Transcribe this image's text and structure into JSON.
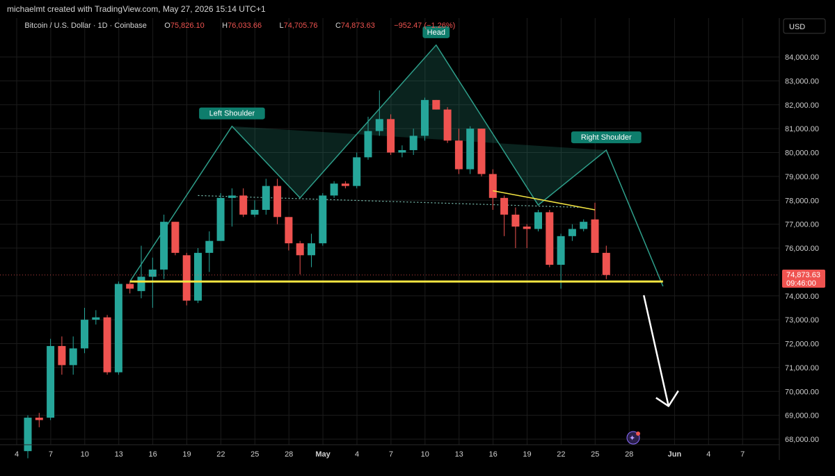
{
  "header": {
    "attribution": "michaelmt created with TradingView.com, May 27, 2026 15:14 UTC+1",
    "symbol": "Bitcoin / U.S. Dollar · 1D · Coinbase",
    "open_label": "O",
    "open": "75,826.10",
    "high_label": "H",
    "high": "76,033.66",
    "low_label": "L",
    "low": "74,705.76",
    "close_label": "C",
    "close": "74,873.63",
    "change": "−952.47 (−1.26%)"
  },
  "currency_button": "USD",
  "price_badge": {
    "price": "74,873.63",
    "countdown": "09:46:00"
  },
  "annotations": {
    "left_shoulder": "Left Shoulder",
    "head": "Head",
    "right_shoulder": "Right Shoulder"
  },
  "colors": {
    "up": "#26a69a",
    "down": "#ef5350",
    "pattern": "#2e9e8a",
    "neckline": "#f5e642",
    "grid": "#1c1c1c",
    "arrow": "#ffffff"
  },
  "chart_data": {
    "type": "candlestick",
    "title": "Bitcoin / U.S. Dollar · 1D · Coinbase",
    "xlabel": "",
    "ylabel": "",
    "ylim": [
      67500,
      85500
    ],
    "grid": true,
    "y_ticks": [
      "84,000.00",
      "83,000.00",
      "82,000.00",
      "81,000.00",
      "80,000.00",
      "79,000.00",
      "78,000.00",
      "77,000.00",
      "76,000.00",
      "74,000.00",
      "73,000.00",
      "72,000.00",
      "71,000.00",
      "70,000.00",
      "69,000.00",
      "68,000.00"
    ],
    "x_ticks": [
      "4",
      "7",
      "10",
      "13",
      "16",
      "19",
      "22",
      "25",
      "28",
      "May",
      "4",
      "7",
      "10",
      "13",
      "16",
      "19",
      "22",
      "25",
      "28",
      "Jun",
      "4",
      "7"
    ],
    "x_tick_days": [
      0,
      3,
      6,
      9,
      12,
      15,
      18,
      21,
      24,
      27,
      30,
      33,
      36,
      39,
      42,
      45,
      48,
      51,
      54,
      58,
      61,
      64
    ],
    "candles": [
      {
        "d": 0,
        "o": 67500,
        "h": 69000,
        "l": 67200,
        "c": 68900
      },
      {
        "d": 1,
        "o": 68900,
        "h": 69100,
        "l": 68500,
        "c": 68800
      },
      {
        "d": 2,
        "o": 68900,
        "h": 72200,
        "l": 68800,
        "c": 71900
      },
      {
        "d": 3,
        "o": 71900,
        "h": 72300,
        "l": 70700,
        "c": 71100
      },
      {
        "d": 4,
        "o": 71100,
        "h": 72300,
        "l": 70700,
        "c": 71800
      },
      {
        "d": 5,
        "o": 71800,
        "h": 73500,
        "l": 71600,
        "c": 73000
      },
      {
        "d": 6,
        "o": 73000,
        "h": 73400,
        "l": 72800,
        "c": 73100
      },
      {
        "d": 7,
        "o": 73100,
        "h": 73200,
        "l": 70700,
        "c": 70800
      },
      {
        "d": 8,
        "o": 70800,
        "h": 74600,
        "l": 70700,
        "c": 74500
      },
      {
        "d": 9,
        "o": 74500,
        "h": 74600,
        "l": 74100,
        "c": 74300
      },
      {
        "d": 10,
        "o": 74200,
        "h": 76100,
        "l": 73900,
        "c": 74800
      },
      {
        "d": 11,
        "o": 74800,
        "h": 75600,
        "l": 73500,
        "c": 75100
      },
      {
        "d": 12,
        "o": 75100,
        "h": 77400,
        "l": 74700,
        "c": 77100
      },
      {
        "d": 13,
        "o": 77100,
        "h": 77100,
        "l": 75700,
        "c": 75800
      },
      {
        "d": 14,
        "o": 75700,
        "h": 75800,
        "l": 73600,
        "c": 73800
      },
      {
        "d": 15,
        "o": 73800,
        "h": 76000,
        "l": 73700,
        "c": 75800
      },
      {
        "d": 16,
        "o": 75800,
        "h": 76700,
        "l": 75000,
        "c": 76300
      },
      {
        "d": 17,
        "o": 76300,
        "h": 78300,
        "l": 76300,
        "c": 78100
      },
      {
        "d": 18,
        "o": 78100,
        "h": 78500,
        "l": 76900,
        "c": 78200
      },
      {
        "d": 19,
        "o": 78200,
        "h": 78500,
        "l": 77300,
        "c": 77400
      },
      {
        "d": 20,
        "o": 77400,
        "h": 78000,
        "l": 77300,
        "c": 77600
      },
      {
        "d": 21,
        "o": 77600,
        "h": 78900,
        "l": 77400,
        "c": 78600
      },
      {
        "d": 22,
        "o": 78600,
        "h": 78900,
        "l": 77000,
        "c": 77300
      },
      {
        "d": 23,
        "o": 77300,
        "h": 77300,
        "l": 75900,
        "c": 76200
      },
      {
        "d": 24,
        "o": 76200,
        "h": 76300,
        "l": 74900,
        "c": 75700
      },
      {
        "d": 25,
        "o": 75700,
        "h": 76600,
        "l": 75200,
        "c": 76200
      },
      {
        "d": 26,
        "o": 76200,
        "h": 78300,
        "l": 76100,
        "c": 78200
      },
      {
        "d": 27,
        "o": 78200,
        "h": 78800,
        "l": 78100,
        "c": 78700
      },
      {
        "d": 28,
        "o": 78700,
        "h": 78800,
        "l": 78500,
        "c": 78600
      },
      {
        "d": 29,
        "o": 78600,
        "h": 80000,
        "l": 78500,
        "c": 79800
      },
      {
        "d": 30,
        "o": 79800,
        "h": 81500,
        "l": 79700,
        "c": 80900
      },
      {
        "d": 31,
        "o": 80900,
        "h": 82600,
        "l": 80700,
        "c": 81400
      },
      {
        "d": 32,
        "o": 81400,
        "h": 81600,
        "l": 79900,
        "c": 80000
      },
      {
        "d": 33,
        "o": 80000,
        "h": 80300,
        "l": 79800,
        "c": 80100
      },
      {
        "d": 34,
        "o": 80100,
        "h": 81000,
        "l": 79900,
        "c": 80700
      },
      {
        "d": 35,
        "o": 80700,
        "h": 82300,
        "l": 80500,
        "c": 82200
      },
      {
        "d": 36,
        "o": 82200,
        "h": 82200,
        "l": 81800,
        "c": 81800
      },
      {
        "d": 37,
        "o": 81800,
        "h": 81900,
        "l": 80400,
        "c": 80500
      },
      {
        "d": 38,
        "o": 80500,
        "h": 81000,
        "l": 79100,
        "c": 79300
      },
      {
        "d": 39,
        "o": 79300,
        "h": 81100,
        "l": 79100,
        "c": 81000
      },
      {
        "d": 40,
        "o": 81000,
        "h": 81000,
        "l": 79000,
        "c": 79100
      },
      {
        "d": 41,
        "o": 79100,
        "h": 79300,
        "l": 77600,
        "c": 78100
      },
      {
        "d": 42,
        "o": 78100,
        "h": 78200,
        "l": 76500,
        "c": 77400
      },
      {
        "d": 43,
        "o": 77400,
        "h": 77700,
        "l": 76000,
        "c": 76900
      },
      {
        "d": 44,
        "o": 76900,
        "h": 77000,
        "l": 76000,
        "c": 76800
      },
      {
        "d": 45,
        "o": 76800,
        "h": 77600,
        "l": 76700,
        "c": 77500
      },
      {
        "d": 46,
        "o": 77500,
        "h": 77600,
        "l": 75200,
        "c": 75300
      },
      {
        "d": 47,
        "o": 75300,
        "h": 76600,
        "l": 74300,
        "c": 76500
      },
      {
        "d": 48,
        "o": 76500,
        "h": 77000,
        "l": 76300,
        "c": 76800
      },
      {
        "d": 49,
        "o": 76800,
        "h": 77200,
        "l": 76700,
        "c": 77100
      },
      {
        "d": 50,
        "o": 77200,
        "h": 77900,
        "l": 75900,
        "c": 75800
      },
      {
        "d": 51,
        "o": 75800,
        "h": 76100,
        "l": 74700,
        "c": 74873.63
      }
    ],
    "pattern": {
      "outline": [
        [
          9,
          74600
        ],
        [
          18,
          81100
        ],
        [
          24,
          78100
        ],
        [
          36,
          84500
        ],
        [
          45,
          77800
        ],
        [
          51,
          80100
        ],
        [
          56,
          74400
        ]
      ],
      "neckline_dotted": [
        [
          15,
          78200
        ],
        [
          49,
          77700
        ]
      ],
      "support_line": {
        "x": [
          9,
          56
        ],
        "y": 74600
      },
      "trend_line": {
        "x": [
          41,
          50
        ],
        "y": [
          78400,
          77600
        ]
      },
      "left_shoulder": {
        "x": 18,
        "y": 81100
      },
      "head": {
        "x": 36,
        "y": 84500
      },
      "right_shoulder": {
        "x": 51,
        "y": 80100
      },
      "arrow": {
        "from": [
          54,
          74200
        ],
        "to": [
          56,
          69500
        ]
      }
    }
  }
}
